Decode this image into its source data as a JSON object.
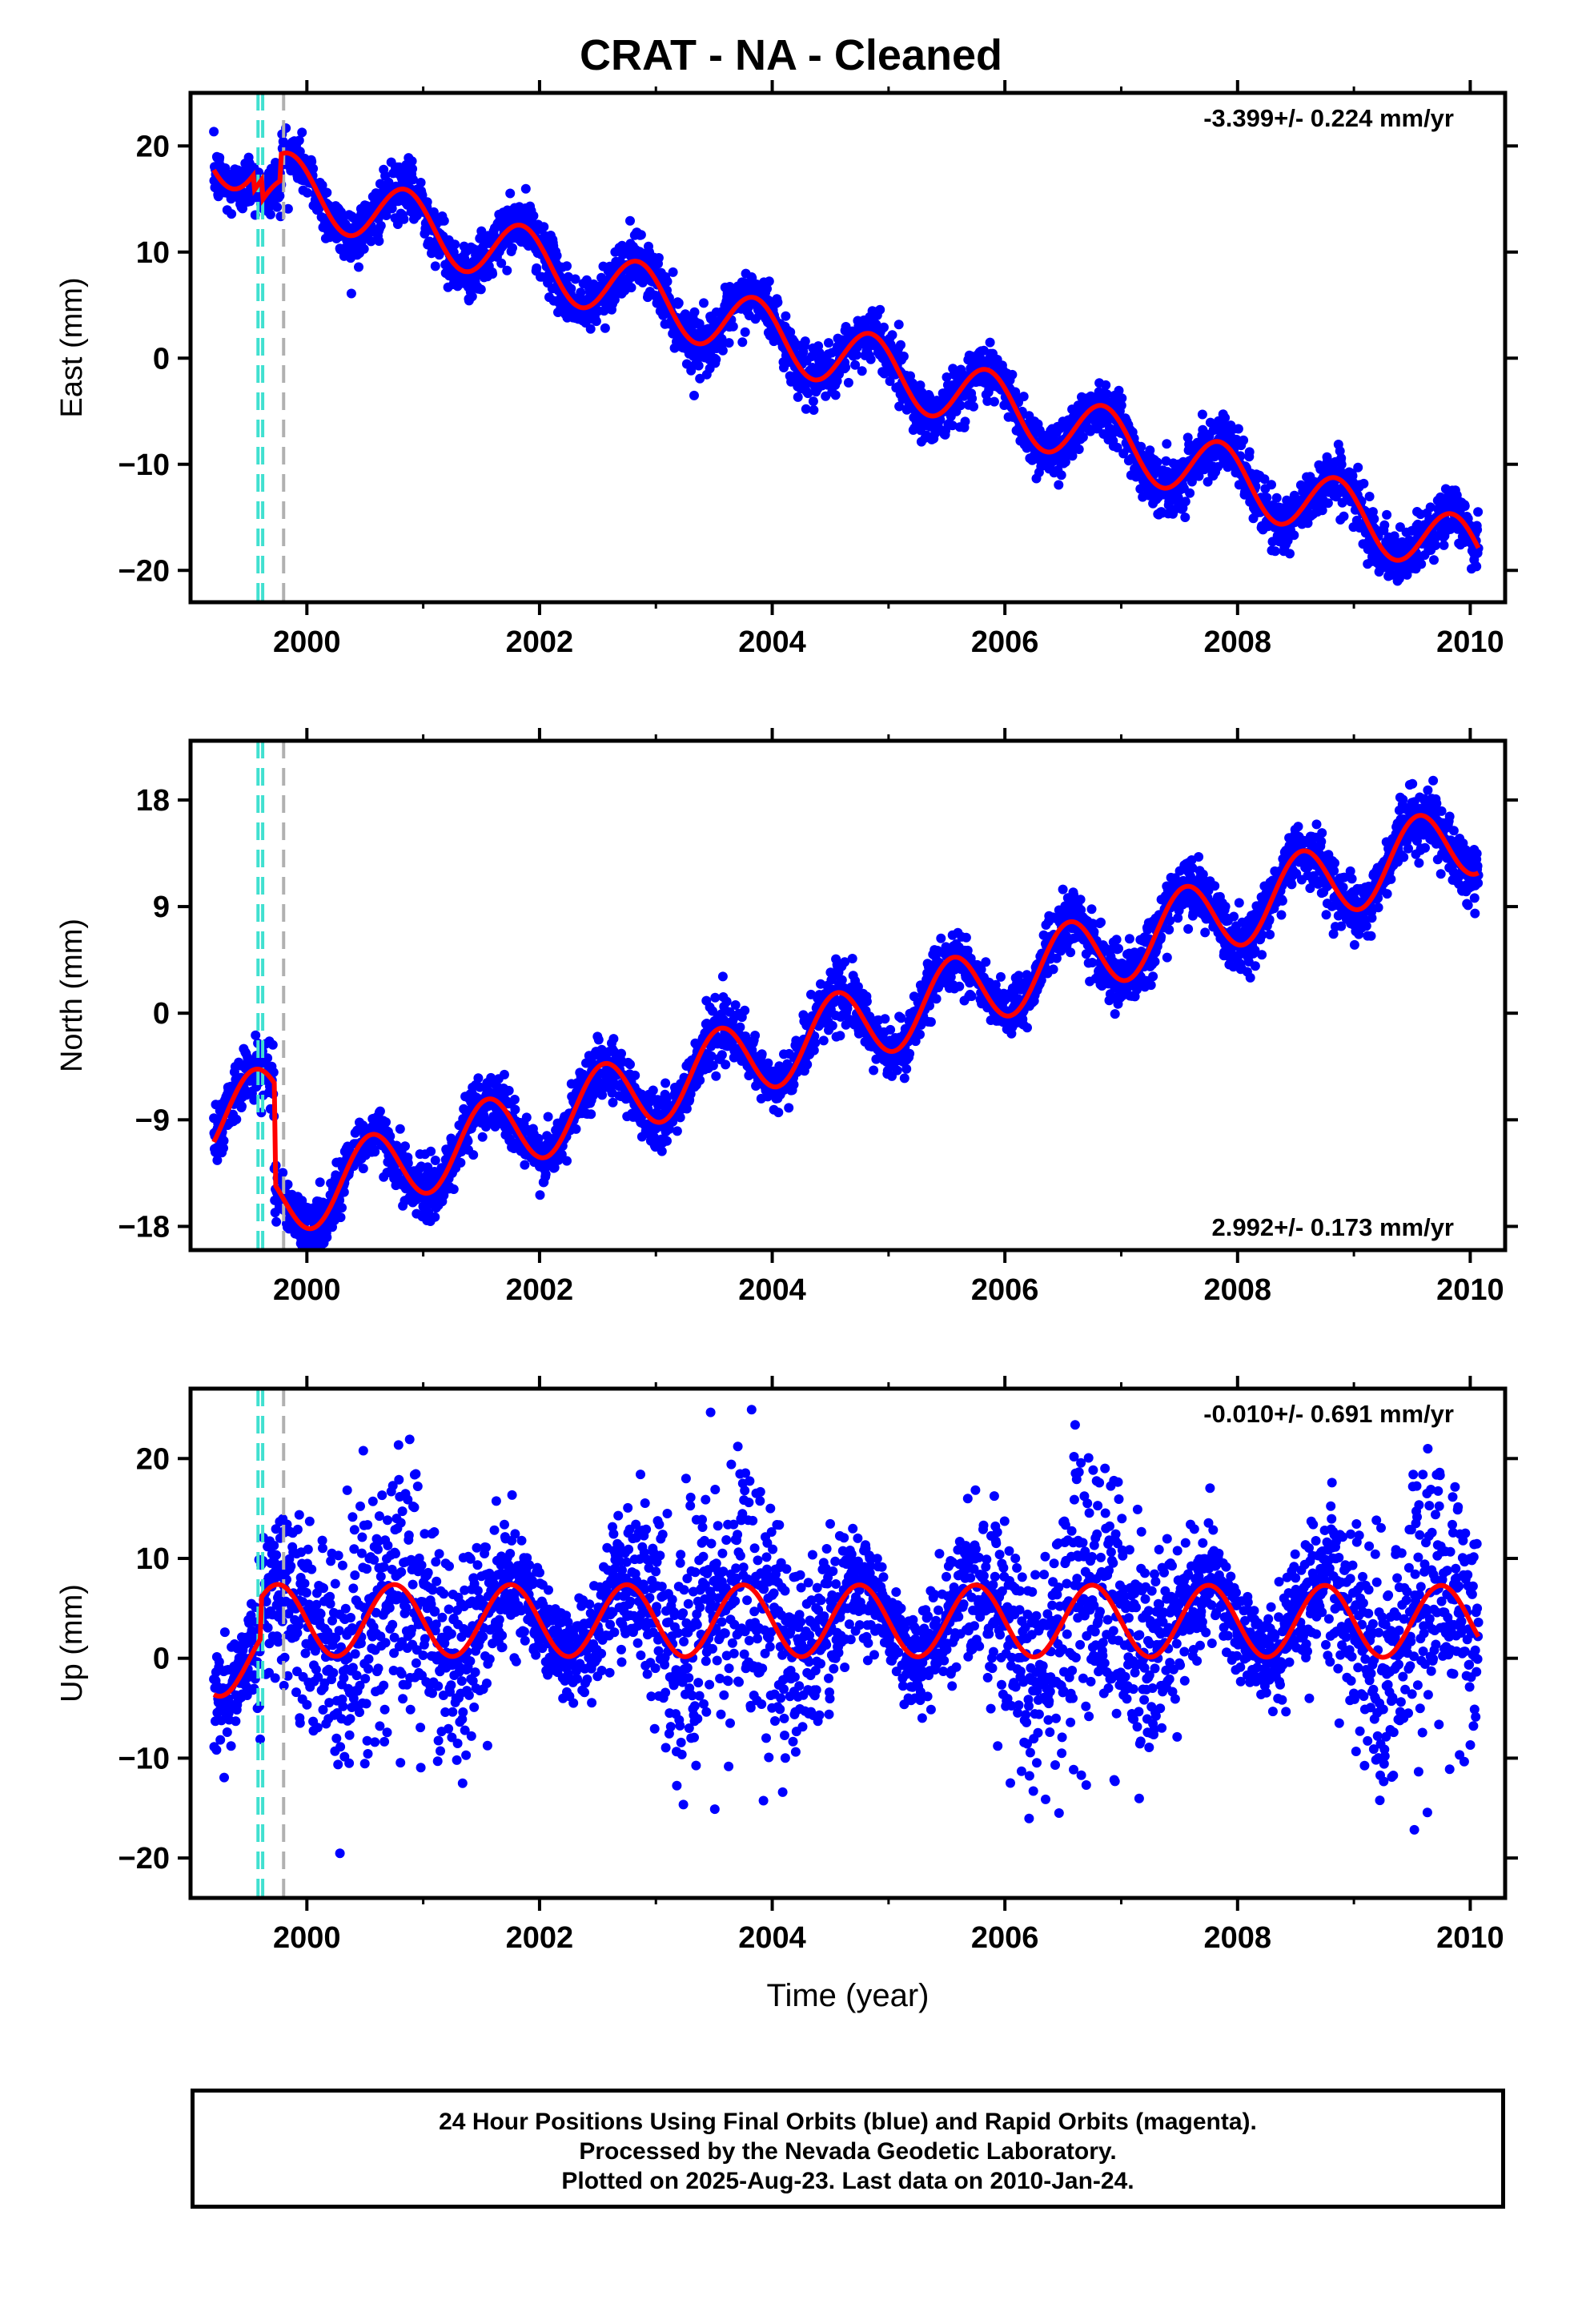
{
  "title": "CRAT  - NA - Cleaned",
  "footer": {
    "line1": "24 Hour Positions Using Final Orbits (blue) and Rapid Orbits (magenta).",
    "line2": "Processed by the Nevada Geodetic Laboratory.",
    "line3": "Plotted on 2025-Aug-23. Last data on 2010-Jan-24."
  },
  "xlabel": "Time (year)",
  "colors": {
    "data": "#0000ff",
    "model": "#ff0000",
    "cyan_line": "#40e0d0",
    "gray_line": "#b0b0b0",
    "frame": "#000000"
  },
  "chart_data": [
    {
      "type": "scatter",
      "ylabel": "East (mm)",
      "rate_label": "-3.399+/- 0.224 mm/yr",
      "rate_position": "top-right",
      "xlim": [
        1999.0,
        2010.3
      ],
      "ylim": [
        -23,
        25
      ],
      "xticks": [
        2000,
        2002,
        2004,
        2006,
        2008,
        2010
      ],
      "xtick_labels": [
        "2000",
        "2002",
        "2004",
        "2006",
        "2008",
        "2010"
      ],
      "yticks": [
        -20,
        -10,
        0,
        10,
        20
      ],
      "ytick_labels": [
        "−20",
        "−10",
        "0",
        "10",
        "20"
      ],
      "data_range": [
        1999.2,
        2010.07
      ],
      "trend": {
        "t0": 1999.2,
        "offset": 19.5,
        "rate": -3.399
      },
      "seasonal": {
        "amplitude": 3.0,
        "phase_year": 1999.85
      },
      "scatter_noise": 1.3,
      "steps": [
        {
          "x": 1999.55,
          "dy": -1.5
        },
        {
          "x": 1999.62,
          "dy": -2.0
        },
        {
          "x": 1999.78,
          "dy": 2.5
        }
      ],
      "vlines": [
        {
          "x": 1999.58,
          "color": "cyan"
        },
        {
          "x": 1999.62,
          "color": "cyan"
        },
        {
          "x": 1999.8,
          "color": "gray"
        }
      ]
    },
    {
      "type": "scatter",
      "ylabel": "North (mm)",
      "rate_label": "2.992+/- 0.173 mm/yr",
      "rate_position": "bottom-right",
      "xlim": [
        1999.0,
        2010.3
      ],
      "ylim": [
        -20,
        23
      ],
      "xticks": [
        2000,
        2002,
        2004,
        2006,
        2008,
        2010
      ],
      "xtick_labels": [
        "2000",
        "2002",
        "2004",
        "2006",
        "2008",
        "2010"
      ],
      "yticks": [
        -18,
        -9,
        0,
        9,
        18
      ],
      "ytick_labels": [
        "−18",
        "−9",
        "0",
        "9",
        "18"
      ],
      "data_range": [
        1999.2,
        2010.07
      ],
      "trend": {
        "t0": 1999.2,
        "offset": -9.0,
        "rate": 2.992
      },
      "seasonal": {
        "amplitude": 3.2,
        "phase_year": 1999.55
      },
      "scatter_noise": 1.2,
      "steps": [
        {
          "x": 1999.72,
          "dy": -8.5
        }
      ],
      "vlines": [
        {
          "x": 1999.58,
          "color": "cyan"
        },
        {
          "x": 1999.62,
          "color": "cyan"
        },
        {
          "x": 1999.8,
          "color": "gray"
        }
      ]
    },
    {
      "type": "scatter",
      "ylabel": "Up (mm)",
      "rate_label": "-0.010+/- 0.691 mm/yr",
      "rate_position": "top-right",
      "xlim": [
        1999.0,
        2010.3
      ],
      "ylim": [
        -24,
        27
      ],
      "xticks": [
        2000,
        2002,
        2004,
        2006,
        2008,
        2010
      ],
      "xtick_labels": [
        "2000",
        "2002",
        "2004",
        "2006",
        "2008",
        "2010"
      ],
      "yticks": [
        -20,
        -10,
        0,
        10,
        20
      ],
      "ytick_labels": [
        "−20",
        "−10",
        "0",
        "10",
        "20"
      ],
      "data_range": [
        1999.2,
        2010.07
      ],
      "trend": {
        "t0": 1999.2,
        "offset": -0.2,
        "rate": -0.01
      },
      "seasonal": {
        "amplitude": 3.6,
        "phase_year": 1999.75
      },
      "scatter_noise": 4.5,
      "steps": [
        {
          "x": 1999.6,
          "dy": 4.0
        }
      ],
      "vlines": [
        {
          "x": 1999.58,
          "color": "cyan"
        },
        {
          "x": 1999.62,
          "color": "cyan"
        },
        {
          "x": 1999.8,
          "color": "gray"
        }
      ]
    }
  ]
}
